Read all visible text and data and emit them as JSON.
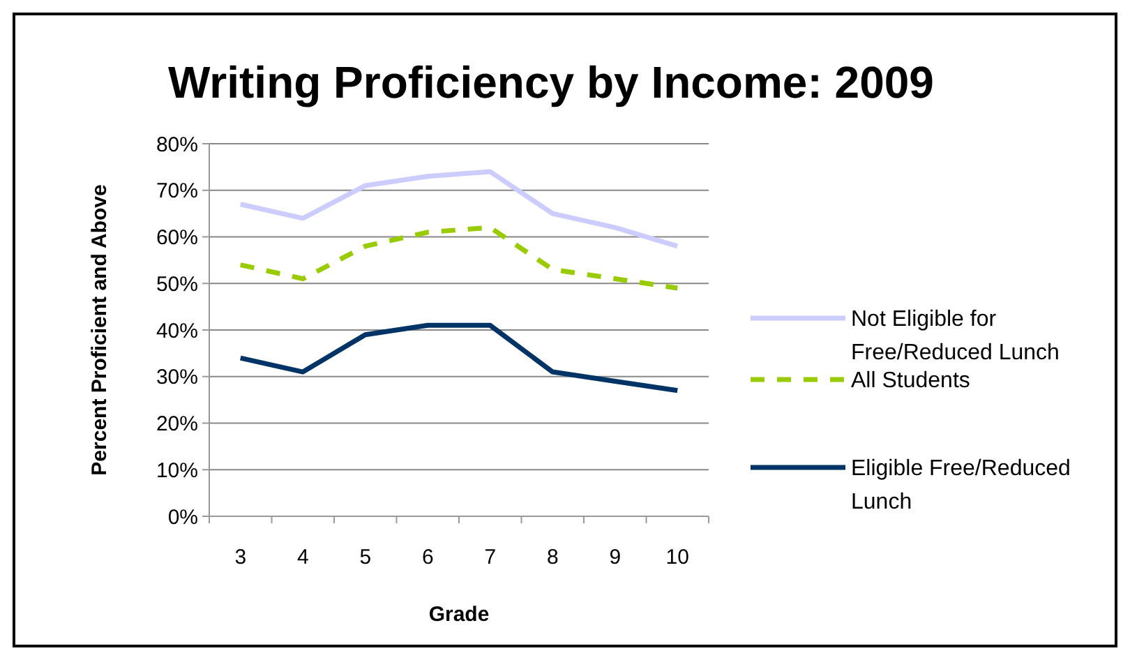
{
  "chart_data": {
    "type": "line",
    "title": "Writing Proficiency by Income:  2009",
    "xlabel": "Grade",
    "ylabel": "Percent Proficient and Above",
    "categories": [
      "3",
      "4",
      "5",
      "6",
      "7",
      "8",
      "9",
      "10"
    ],
    "series": [
      {
        "name": "Not Eligible for Free/Reduced Lunch",
        "color": "#ccccff",
        "line_style": "solid",
        "values": [
          67,
          64,
          71,
          73,
          74,
          65,
          62,
          58
        ]
      },
      {
        "name": "All Students",
        "color": "#99cc00",
        "line_style": "dashed",
        "values": [
          54,
          51,
          58,
          61,
          62,
          53,
          51,
          49
        ]
      },
      {
        "name": "Eligible Free/Reduced Lunch",
        "color": "#003366",
        "line_style": "solid",
        "values": [
          34,
          31,
          39,
          41,
          41,
          31,
          29,
          27
        ]
      }
    ],
    "ylim": [
      0,
      80
    ],
    "yticks": [
      {
        "value": 0,
        "label": "0%"
      },
      {
        "value": 10,
        "label": "10%"
      },
      {
        "value": 20,
        "label": "20%"
      },
      {
        "value": 30,
        "label": "30%"
      },
      {
        "value": 40,
        "label": "40%"
      },
      {
        "value": 50,
        "label": "50%"
      },
      {
        "value": 60,
        "label": "60%"
      },
      {
        "value": 70,
        "label": "70%"
      },
      {
        "value": 80,
        "label": "80%"
      }
    ],
    "grid": "y",
    "legend": "right",
    "marker": "none"
  }
}
